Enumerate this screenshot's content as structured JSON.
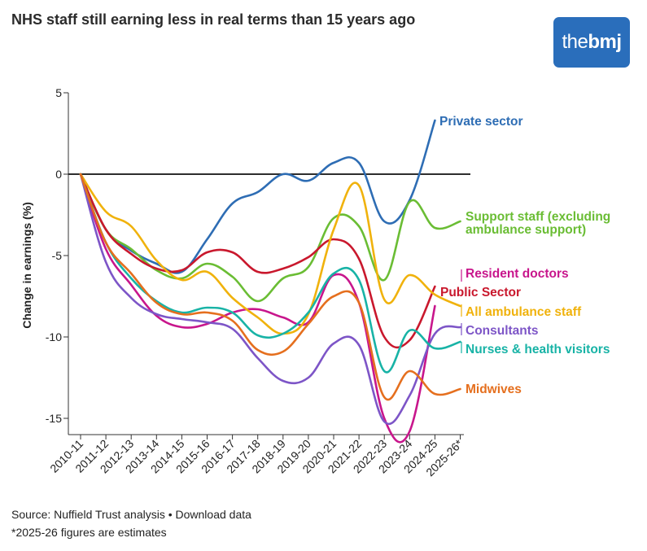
{
  "header": {
    "title": "NHS staff still earning less in real terms than 15 years ago",
    "logo_text_the": "the",
    "logo_text_bmj": "bmj",
    "logo_color": "#2a6ebb"
  },
  "chart_data": {
    "type": "line",
    "title": "NHS staff still earning less in real terms than 15 years ago",
    "xlabel": "",
    "ylabel": "Change in earnings (%)",
    "ylim": [
      -16,
      5
    ],
    "yticks": [
      5,
      0,
      -5,
      -10,
      -15
    ],
    "ytick_labels": [
      "5",
      "0",
      "-5",
      "-10",
      "-15"
    ],
    "zero_line": true,
    "grid": false,
    "legend": "direct labels at right end of lines",
    "categories": [
      "2010-11",
      "2011-12",
      "2012-13",
      "2013-14",
      "2014-15",
      "2015-16",
      "2016-17",
      "2017-18",
      "2018-19",
      "2019-20",
      "2020-21",
      "2021-22",
      "2022-23",
      "2023-24",
      "2024-25",
      "2025-26*"
    ],
    "series": [
      {
        "name": "Private sector",
        "color": "#2e6db4",
        "values": [
          0,
          -3.4,
          -4.7,
          -5.5,
          -6.0,
          -4.0,
          -1.8,
          -1.1,
          0.0,
          -0.4,
          0.7,
          0.7,
          -2.9,
          -1.6,
          3.3,
          null
        ]
      },
      {
        "name": "Support staff (excluding ambulance support)",
        "color": "#6abd34",
        "values": [
          0,
          -3.4,
          -4.6,
          -5.9,
          -6.4,
          -5.5,
          -6.3,
          -7.8,
          -6.4,
          -5.7,
          -2.7,
          -3.2,
          -6.5,
          -1.7,
          -3.3,
          -2.9
        ]
      },
      {
        "name": "Resident doctors",
        "color": "#c8168c",
        "values": [
          0,
          -4.6,
          -6.8,
          -8.7,
          -9.4,
          -9.2,
          -8.5,
          -8.3,
          -8.8,
          -9.1,
          -6.2,
          -7.9,
          -15.0,
          -15.8,
          -8.1,
          null
        ]
      },
      {
        "name": "Public Sector",
        "color": "#c9182d",
        "values": [
          0,
          -3.4,
          -4.9,
          -5.8,
          -5.9,
          -4.8,
          -4.8,
          -6.0,
          -5.8,
          -5.1,
          -4.0,
          -5.2,
          -10.0,
          -10.2,
          -6.9,
          null
        ]
      },
      {
        "name": "All ambulance staff",
        "color": "#f0b20c",
        "values": [
          0,
          -2.3,
          -3.2,
          -5.3,
          -6.5,
          -6.0,
          -7.6,
          -8.8,
          -9.8,
          -8.6,
          -3.4,
          -0.7,
          -7.7,
          -6.2,
          -7.4,
          -8.1
        ]
      },
      {
        "name": "Consultants",
        "color": "#7d55c7",
        "values": [
          0,
          -5.4,
          -7.6,
          -8.6,
          -8.9,
          -9.1,
          -9.5,
          -11.3,
          -12.7,
          -12.5,
          -10.4,
          -10.5,
          -15.2,
          -13.6,
          -9.8,
          -9.4
        ]
      },
      {
        "name": "Nurses & health visitors",
        "color": "#18b3a6",
        "values": [
          0,
          -4.2,
          -6.4,
          -7.8,
          -8.5,
          -8.2,
          -8.5,
          -9.9,
          -9.8,
          -8.5,
          -6.1,
          -6.5,
          -12.1,
          -9.6,
          -10.7,
          -10.3
        ]
      },
      {
        "name": "Midwives",
        "color": "#e56f1e",
        "values": [
          0,
          -4.2,
          -6.1,
          -7.9,
          -8.6,
          -8.5,
          -9.0,
          -10.8,
          -10.9,
          -9.2,
          -7.5,
          -7.9,
          -13.7,
          -12.1,
          -13.5,
          -13.2
        ]
      }
    ]
  },
  "footer": {
    "source": "Source: Nuffield Trust analysis • Download data",
    "note": "*2025-26 figures are estimates"
  }
}
